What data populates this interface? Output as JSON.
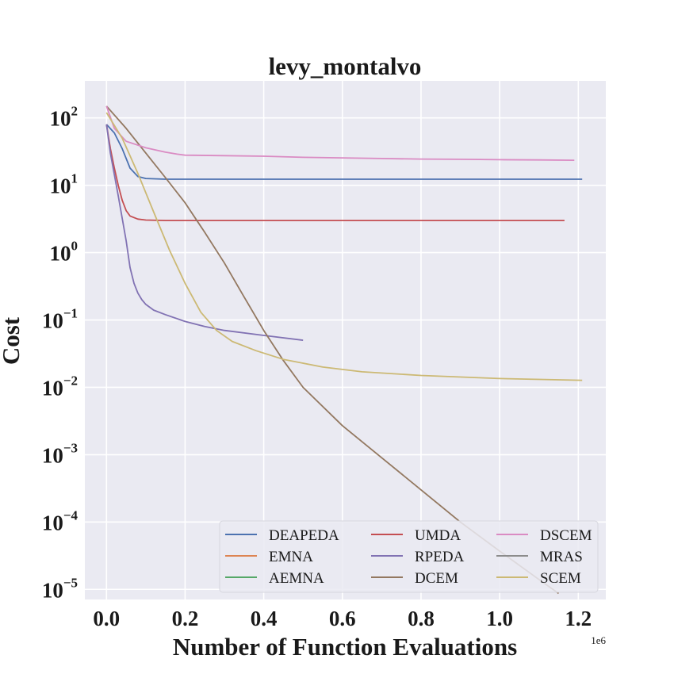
{
  "chart_data": {
    "type": "line",
    "title": "levy_montalvo",
    "xlabel": "Number of Function Evaluations",
    "ylabel": "Cost",
    "x_offset_label": "1e6",
    "yscale": "log",
    "xlim": [
      -0.055,
      1.27
    ],
    "ylim_log10": [
      -5.15,
      2.55
    ],
    "xticks": [
      0.0,
      0.2,
      0.4,
      0.6,
      0.8,
      1.0,
      1.2
    ],
    "xtick_labels": [
      "0.0",
      "0.2",
      "0.4",
      "0.6",
      "0.8",
      "1.0",
      "1.2"
    ],
    "yticks_exp": [
      2,
      1,
      0,
      -1,
      -2,
      -3,
      -4,
      -5
    ],
    "ytick_base": "10",
    "grid": true,
    "legend_position": "lower-right",
    "legend_columns": 3,
    "background_color": "#eaeaf2",
    "series": [
      {
        "name": "DEAPEDA",
        "color": "#4c72b0",
        "x": [
          0.0,
          0.02,
          0.04,
          0.06,
          0.08,
          0.1,
          0.15,
          0.3,
          0.6,
          0.9,
          1.21
        ],
        "y": [
          80,
          60,
          35,
          18,
          13.5,
          12.6,
          12.3,
          12.3,
          12.3,
          12.3,
          12.3
        ]
      },
      {
        "name": "EMNA",
        "color": "#dd8452",
        "x": [],
        "y": []
      },
      {
        "name": "AEMNA",
        "color": "#55a868",
        "x": [],
        "y": []
      },
      {
        "name": "UMDA",
        "color": "#c44e52",
        "x": [
          0.0,
          0.01,
          0.02,
          0.03,
          0.04,
          0.05,
          0.06,
          0.08,
          0.1,
          0.15,
          0.3,
          0.6,
          0.9,
          1.165
        ],
        "y": [
          80,
          35,
          18,
          10,
          6,
          4.2,
          3.5,
          3.15,
          3.05,
          3.0,
          3.0,
          3.0,
          3.0,
          3.0
        ]
      },
      {
        "name": "RPEDA",
        "color": "#8172b3",
        "x": [
          0.0,
          0.01,
          0.03,
          0.05,
          0.06,
          0.07,
          0.08,
          0.09,
          0.1,
          0.12,
          0.15,
          0.2,
          0.25,
          0.3,
          0.4,
          0.5
        ],
        "y": [
          80,
          30,
          7,
          1.5,
          0.6,
          0.35,
          0.25,
          0.2,
          0.17,
          0.14,
          0.12,
          0.095,
          0.08,
          0.07,
          0.059,
          0.05
        ]
      },
      {
        "name": "DCEM",
        "color": "#937860",
        "x": [
          0.0,
          0.05,
          0.1,
          0.15,
          0.2,
          0.25,
          0.3,
          0.35,
          0.4,
          0.45,
          0.5,
          0.6,
          0.7,
          0.8,
          0.9,
          1.0,
          1.1,
          1.15
        ],
        "y": [
          150,
          70,
          30,
          13,
          5.5,
          2,
          0.7,
          0.22,
          0.07,
          0.025,
          0.01,
          0.0027,
          0.0009,
          0.0003,
          0.0001,
          3.7e-05,
          1.4e-05,
          8.7e-06
        ]
      },
      {
        "name": "DSCEM",
        "color": "#da8bc3",
        "x": [
          0.0,
          0.02,
          0.05,
          0.1,
          0.15,
          0.18,
          0.2,
          0.3,
          0.4,
          0.5,
          0.6,
          0.7,
          0.8,
          0.9,
          1.0,
          1.1,
          1.19
        ],
        "y": [
          150,
          70,
          45,
          36,
          31,
          29,
          28,
          27.5,
          27,
          26,
          25.5,
          25,
          24.5,
          24.3,
          24,
          23.8,
          23.5
        ]
      },
      {
        "name": "MRAS",
        "color": "#8c8c8c",
        "x": [],
        "y": []
      },
      {
        "name": "SCEM",
        "color": "#ccb974",
        "x": [
          0.0,
          0.04,
          0.08,
          0.12,
          0.16,
          0.2,
          0.24,
          0.28,
          0.32,
          0.38,
          0.45,
          0.55,
          0.65,
          0.8,
          1.0,
          1.21
        ],
        "y": [
          120,
          50,
          15,
          4,
          1.1,
          0.35,
          0.13,
          0.07,
          0.048,
          0.035,
          0.026,
          0.02,
          0.017,
          0.015,
          0.0135,
          0.0127
        ]
      }
    ]
  }
}
